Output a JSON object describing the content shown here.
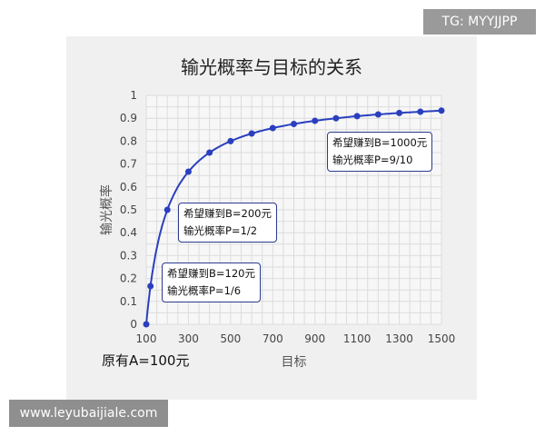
{
  "watermark_top": "TG: MYYJJPP",
  "watermark_bottom": "www.leyubaijiale.com",
  "footnote": "原有A=100元",
  "chart_data": {
    "type": "line",
    "title": "输光概率与目标的关系",
    "xlabel": "目标",
    "ylabel": "输光概率",
    "x": [
      100,
      120,
      200,
      300,
      400,
      500,
      600,
      700,
      800,
      900,
      1000,
      1100,
      1200,
      1300,
      1400,
      1500
    ],
    "y": [
      0,
      0.1667,
      0.5,
      0.6667,
      0.75,
      0.8,
      0.8333,
      0.8571,
      0.875,
      0.8889,
      0.9,
      0.9091,
      0.9167,
      0.9231,
      0.9286,
      0.9333
    ],
    "xlim": [
      100,
      1500
    ],
    "ylim": [
      0,
      1
    ],
    "xticks": [
      "100",
      "300",
      "500",
      "700",
      "900",
      "1100",
      "1300",
      "1500"
    ],
    "yticks": [
      "0",
      "0.1",
      "0.2",
      "0.3",
      "0.4",
      "0.5",
      "0.6",
      "0.7",
      "0.8",
      "0.9",
      "1"
    ],
    "grid": true,
    "color": "#2a3fbf",
    "annotations": [
      {
        "x": 120,
        "y": 0.1667,
        "line1": "希望赚到B=120元",
        "line2": "输光概率P=1/6"
      },
      {
        "x": 200,
        "y": 0.5,
        "line1": "希望赚到B=200元",
        "line2": "输光概率P=1/2"
      },
      {
        "x": 1000,
        "y": 0.9,
        "line1": "希望赚到B=1000元",
        "line2": "输光概率P=9/10"
      }
    ]
  }
}
